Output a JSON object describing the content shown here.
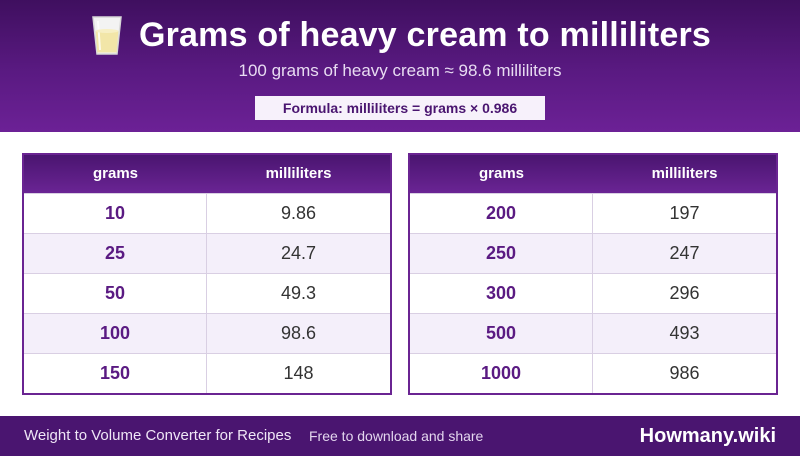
{
  "header": {
    "title": "Grams of heavy cream to milliliters",
    "subtitle": "100 grams of heavy cream ≈ 98.6 milliliters",
    "formula": "Formula: milliliters = grams × 0.986",
    "icon": "glass-of-milk-icon"
  },
  "tables": [
    {
      "headers": [
        "grams",
        "milliliters"
      ],
      "rows": [
        [
          "10",
          "9.86"
        ],
        [
          "25",
          "24.7"
        ],
        [
          "50",
          "49.3"
        ],
        [
          "100",
          "98.6"
        ],
        [
          "150",
          "148"
        ]
      ]
    },
    {
      "headers": [
        "grams",
        "milliliters"
      ],
      "rows": [
        [
          "200",
          "197"
        ],
        [
          "250",
          "247"
        ],
        [
          "300",
          "296"
        ],
        [
          "500",
          "493"
        ],
        [
          "1000",
          "986"
        ]
      ]
    }
  ],
  "footer": {
    "app": "Weight to Volume Converter for Recipes",
    "free": "Free to download and share",
    "brand": "Howmany.wiki"
  },
  "colors": {
    "header_dark": "#3f0f5f",
    "header_light": "#6c2196",
    "accent": "#5a1a82",
    "row_alt": "#f4effa"
  }
}
